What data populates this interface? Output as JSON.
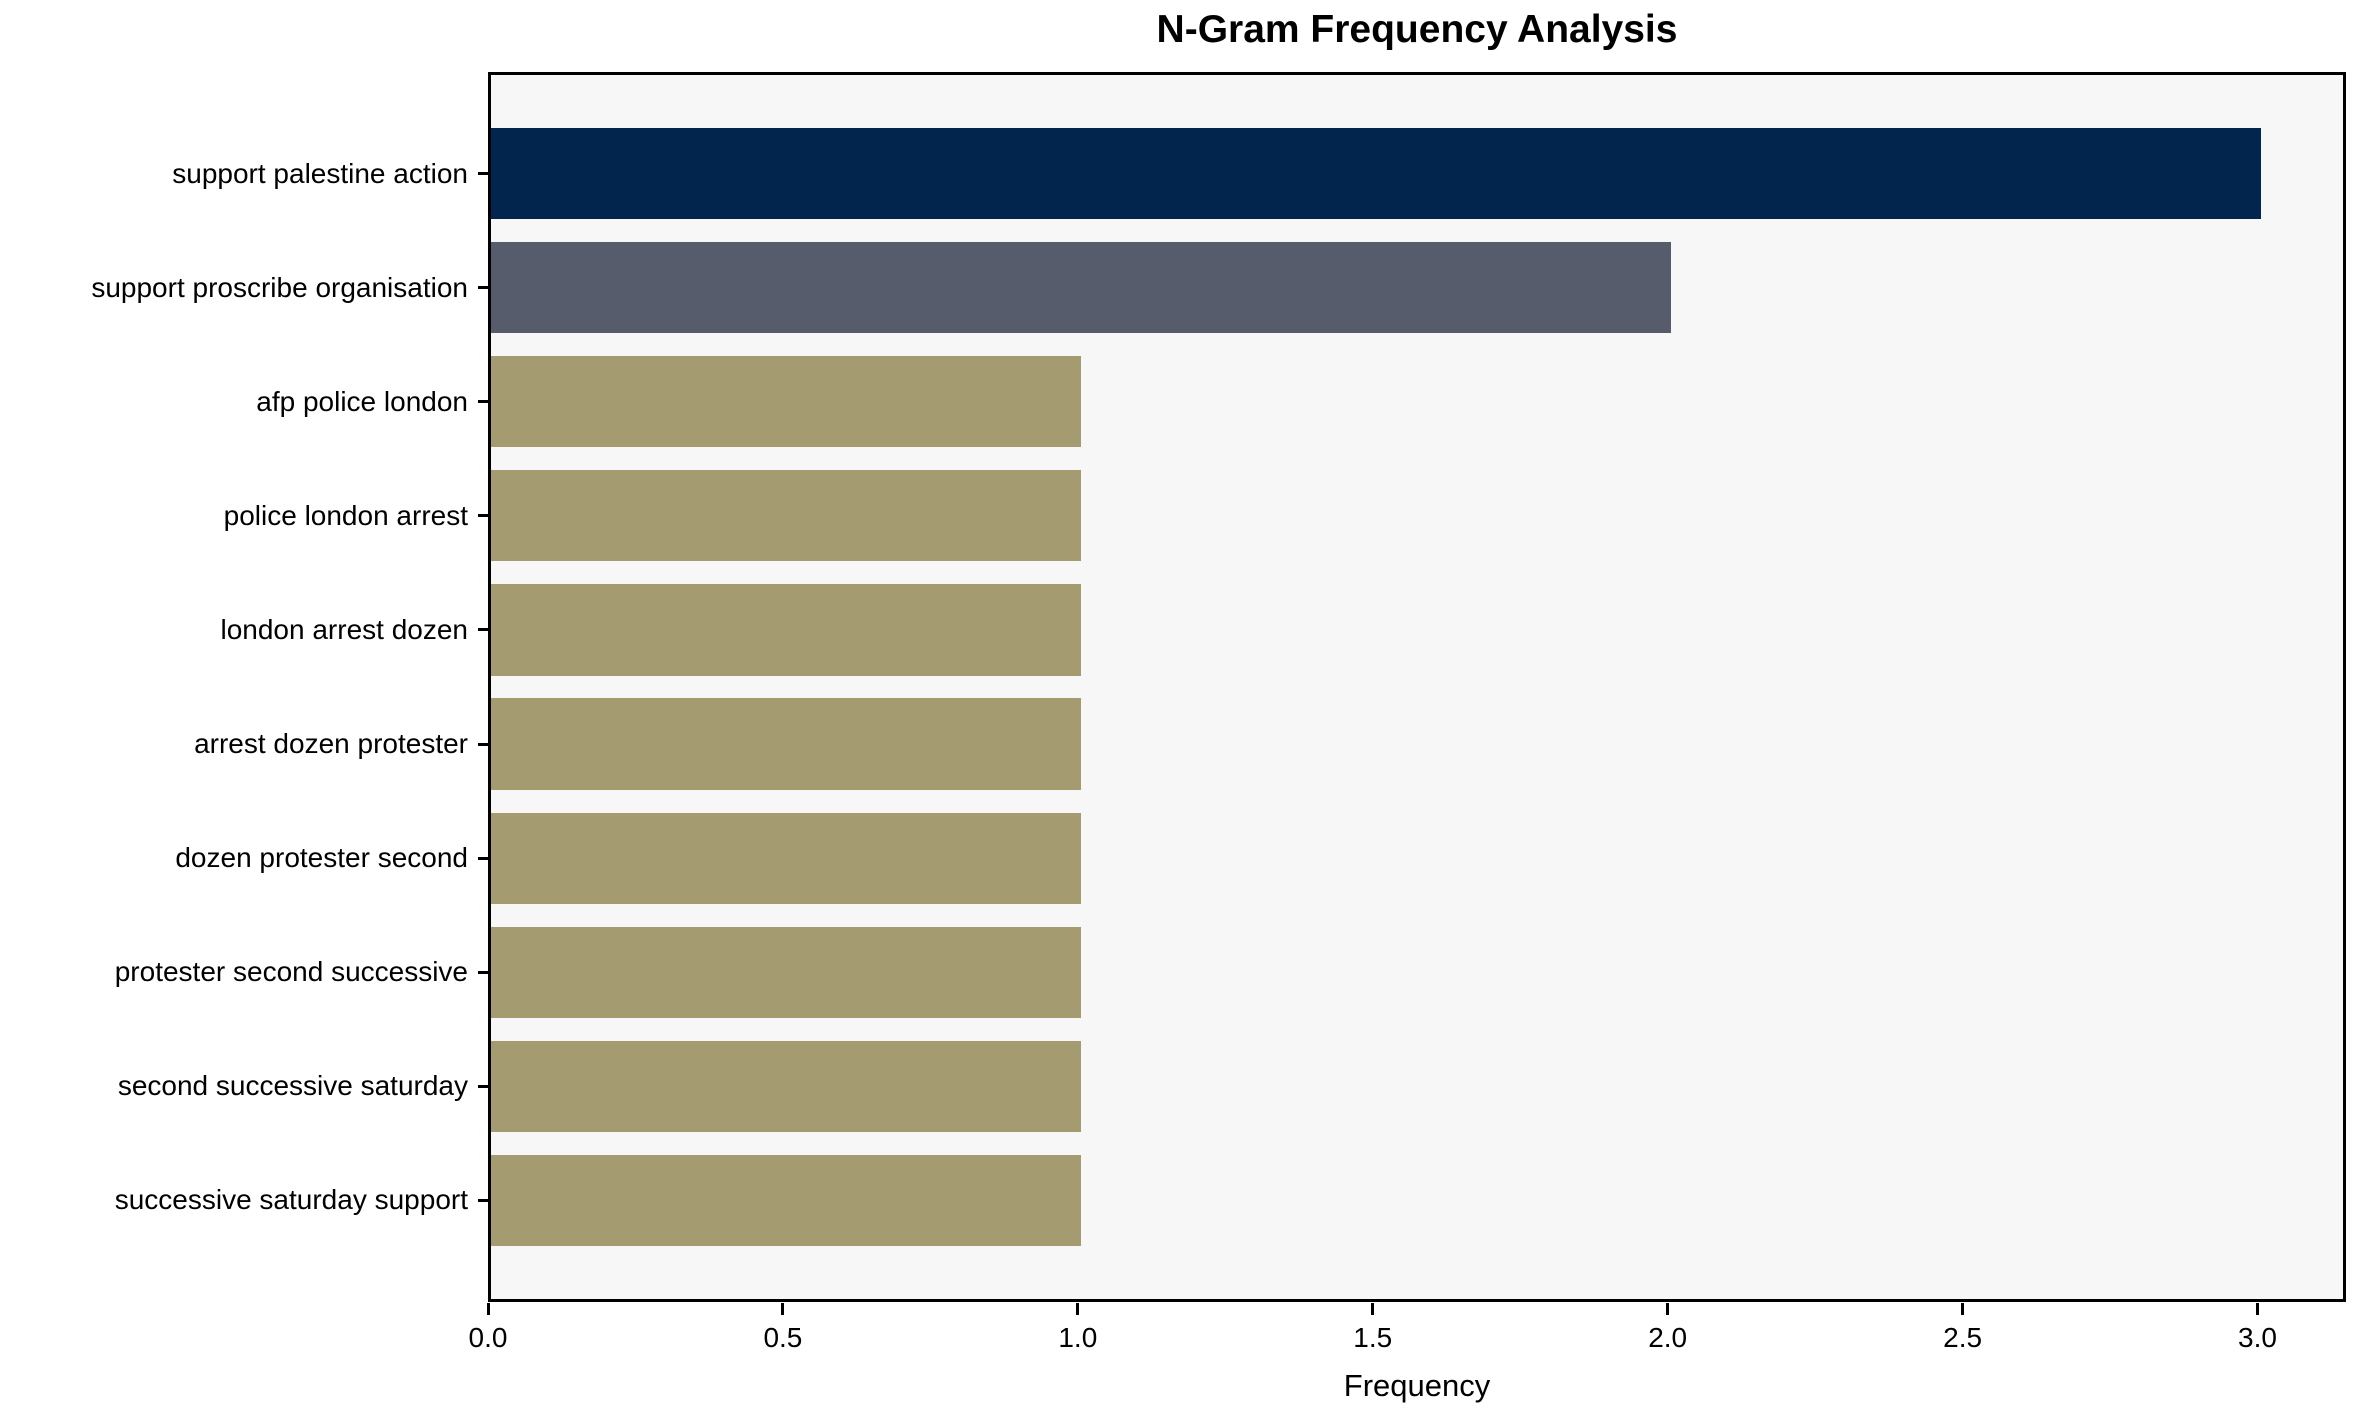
{
  "chart_data": {
    "type": "bar",
    "orientation": "horizontal",
    "title": "N-Gram Frequency Analysis",
    "xlabel": "Frequency",
    "ylabel": "",
    "categories": [
      "support palestine action",
      "support proscribe organisation",
      "afp police london",
      "police london arrest",
      "london arrest dozen",
      "arrest dozen protester",
      "dozen protester second",
      "protester second successive",
      "second successive saturday",
      "successive saturday support"
    ],
    "values": [
      3,
      2,
      1,
      1,
      1,
      1,
      1,
      1,
      1,
      1
    ],
    "xlim": [
      0,
      3.15
    ],
    "xtick_values": [
      0.0,
      0.5,
      1.0,
      1.5,
      2.0,
      2.5,
      3.0
    ],
    "xtick_labels": [
      "0.0",
      "0.5",
      "1.0",
      "1.5",
      "2.0",
      "2.5",
      "3.0"
    ],
    "grid": false,
    "legend": null,
    "colors": {
      "bars": [
        "#02254e",
        "#565c6c",
        "#a49c70",
        "#a49c70",
        "#a49c70",
        "#a49c70",
        "#a49c70",
        "#a49c70",
        "#a49c70",
        "#a49c70"
      ],
      "plot_background": "#f7f7f7",
      "page_background": "#ffffff",
      "spine": "#000000",
      "text": "#000000"
    }
  }
}
